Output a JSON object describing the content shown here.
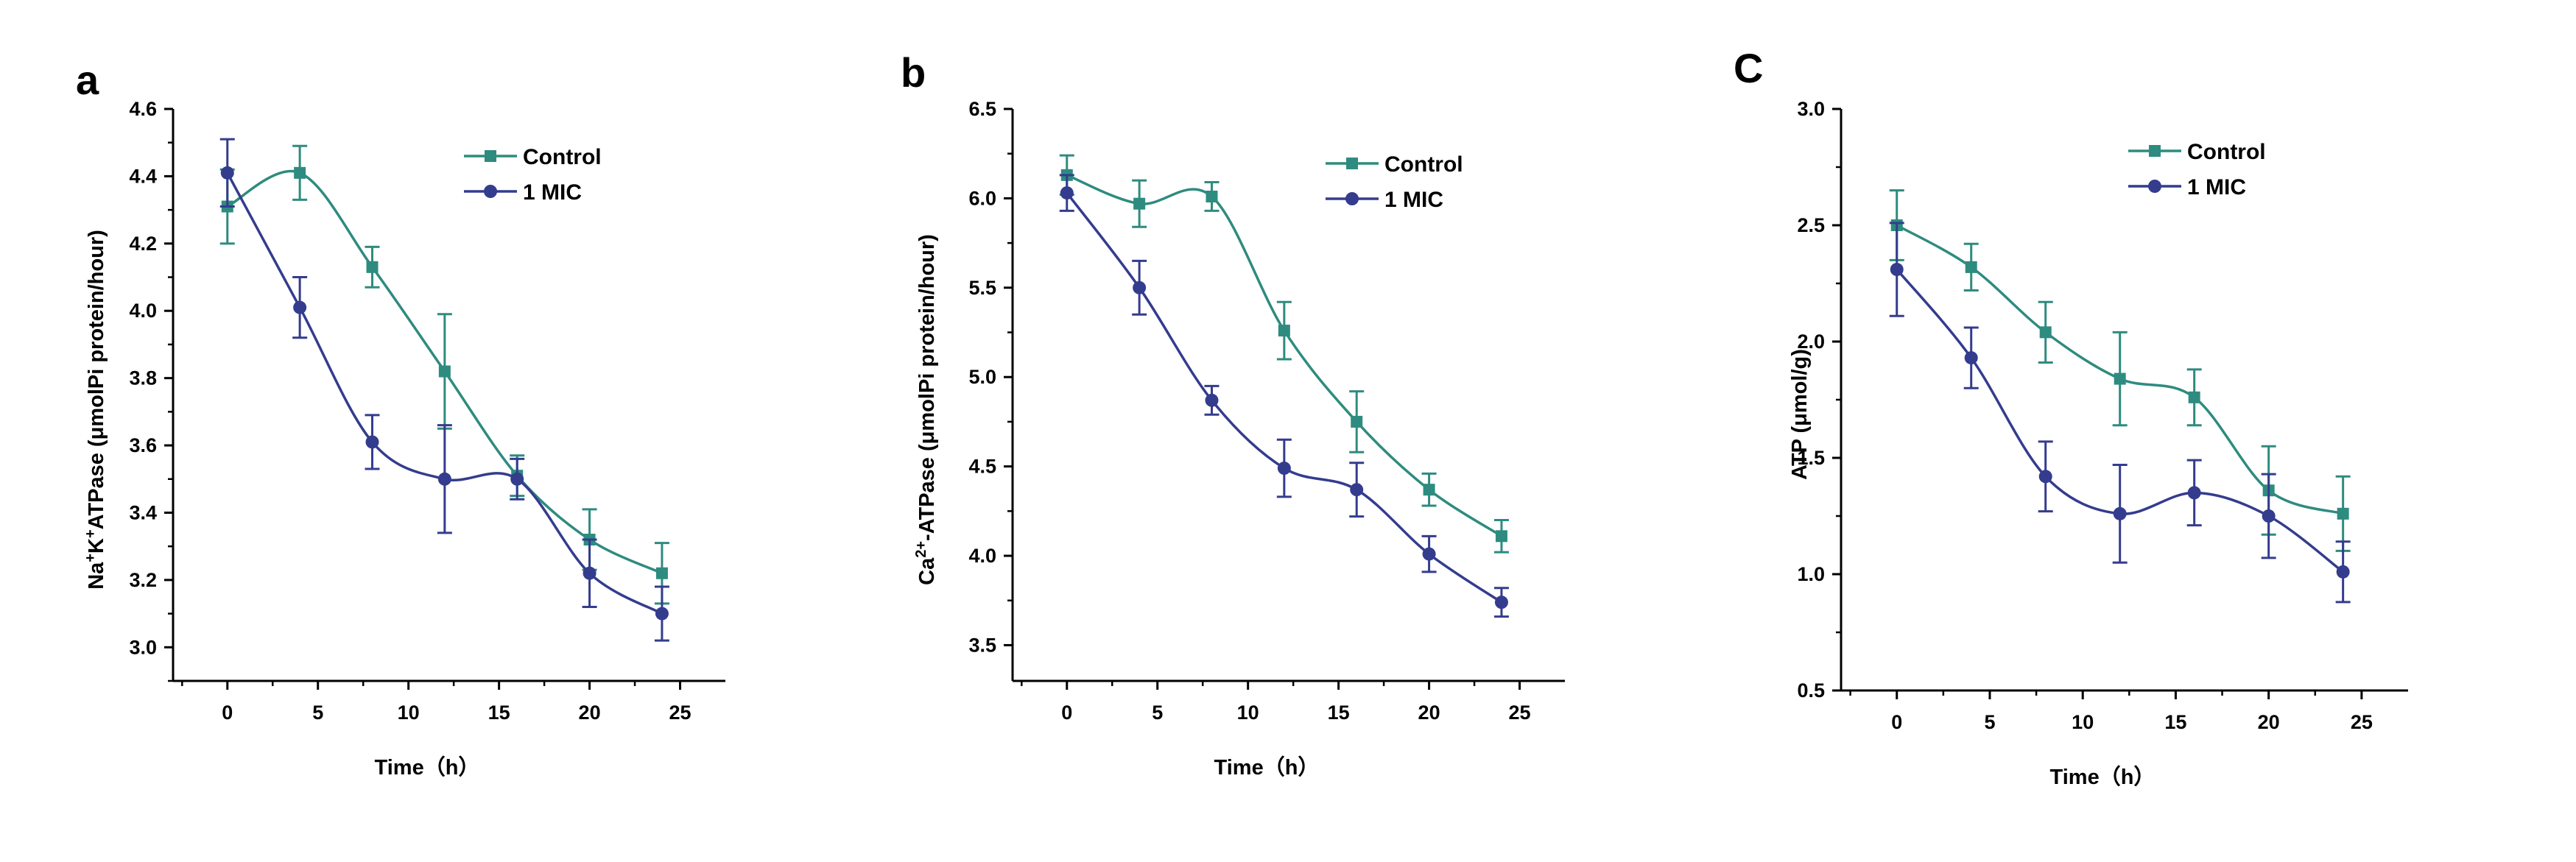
{
  "chart_data": [
    {
      "type": "line",
      "panel": "a",
      "xlabel": "Time（h）",
      "ylabel_parts": [
        "Na",
        "+",
        "K",
        "+",
        "ATPase (μmolPi protein/hour)"
      ],
      "xlim": [
        -3,
        27.5
      ],
      "ylim": [
        2.9,
        4.6
      ],
      "xticks": [
        0,
        5,
        10,
        15,
        20,
        25
      ],
      "yticks": [
        3.0,
        3.2,
        3.4,
        3.6,
        3.8,
        4.0,
        4.2,
        4.4,
        4.6
      ],
      "ytick_decimals": 1,
      "x": [
        0,
        4,
        8,
        12,
        16,
        20,
        24
      ],
      "legend_position": "top-right",
      "series": [
        {
          "name": "Control",
          "color": "#2e8b7f",
          "marker": "square",
          "values": [
            4.31,
            4.41,
            4.13,
            3.82,
            3.51,
            3.32,
            3.22
          ],
          "errors": [
            0.11,
            0.08,
            0.06,
            0.17,
            0.06,
            0.09,
            0.09
          ]
        },
        {
          "name": "1 MIC",
          "color": "#343c8e",
          "marker": "circle",
          "values": [
            4.41,
            4.01,
            3.61,
            3.5,
            3.5,
            3.22,
            3.1
          ],
          "errors": [
            0.1,
            0.09,
            0.08,
            0.16,
            0.06,
            0.1,
            0.08
          ]
        }
      ]
    },
    {
      "type": "line",
      "panel": "b",
      "xlabel": "Time（h）",
      "ylabel_parts": [
        "Ca",
        "2+",
        "",
        "",
        "-ATPase (μmolPi protein/hour)"
      ],
      "xlim": [
        -3,
        27.5
      ],
      "ylim": [
        3.3,
        6.5
      ],
      "xticks": [
        0,
        5,
        10,
        15,
        20,
        25
      ],
      "yticks": [
        3.5,
        4.0,
        4.5,
        5.0,
        5.5,
        6.0,
        6.5
      ],
      "ytick_decimals": 1,
      "x": [
        0,
        4,
        8,
        12,
        16,
        20,
        24
      ],
      "legend_position": "top-right",
      "series": [
        {
          "name": "Control",
          "color": "#2e8b7f",
          "marker": "square",
          "values": [
            6.13,
            5.97,
            6.01,
            5.26,
            4.75,
            4.37,
            4.11
          ],
          "errors": [
            0.11,
            0.13,
            0.08,
            0.16,
            0.17,
            0.09,
            0.09
          ]
        },
        {
          "name": "1 MIC",
          "color": "#343c8e",
          "marker": "circle",
          "values": [
            6.03,
            5.5,
            4.87,
            4.49,
            4.37,
            4.01,
            3.74
          ],
          "errors": [
            0.1,
            0.15,
            0.08,
            0.16,
            0.15,
            0.1,
            0.08
          ]
        }
      ]
    },
    {
      "type": "line",
      "panel": "C",
      "xlabel": "Time（h）",
      "ylabel_parts": [
        "ATP (μmol/g)",
        "",
        "",
        "",
        ""
      ],
      "xlim": [
        -3,
        27.5
      ],
      "ylim": [
        0.5,
        3.0
      ],
      "xticks": [
        0,
        5,
        10,
        15,
        20,
        25
      ],
      "yticks": [
        0.5,
        1.0,
        1.5,
        2.0,
        2.5,
        3.0
      ],
      "ytick_decimals": 1,
      "x": [
        0,
        4,
        8,
        12,
        16,
        20,
        24
      ],
      "legend_position": "top-right",
      "series": [
        {
          "name": "Control",
          "color": "#2e8b7f",
          "marker": "square",
          "values": [
            2.5,
            2.32,
            2.04,
            1.84,
            1.76,
            1.36,
            1.26
          ],
          "errors": [
            0.15,
            0.1,
            0.13,
            0.2,
            0.12,
            0.19,
            0.16
          ]
        },
        {
          "name": "1 MIC",
          "color": "#343c8e",
          "marker": "circle",
          "values": [
            2.31,
            1.93,
            1.42,
            1.26,
            1.35,
            1.25,
            1.01
          ],
          "errors": [
            0.2,
            0.13,
            0.15,
            0.21,
            0.14,
            0.18,
            0.13
          ]
        }
      ]
    }
  ]
}
